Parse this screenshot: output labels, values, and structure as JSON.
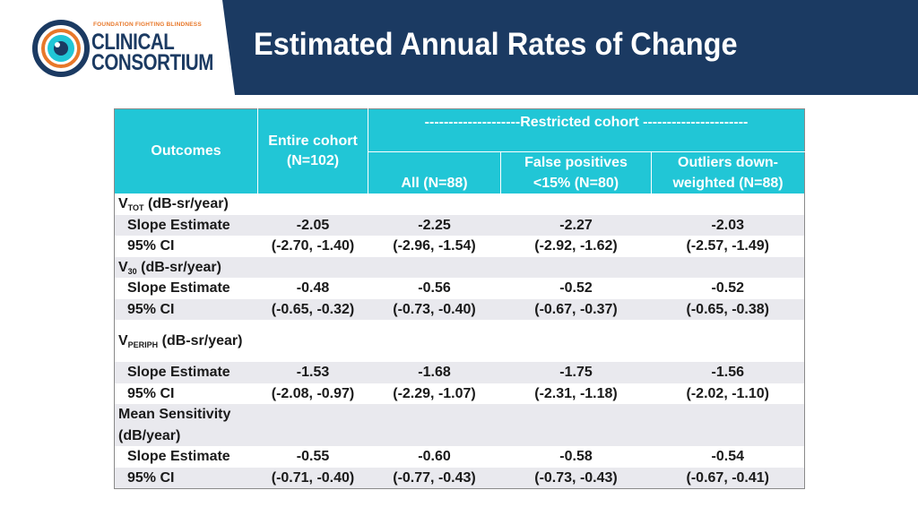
{
  "slide": {
    "title": "Estimated Annual Rates of Change"
  },
  "logo": {
    "tagline": "FOUNDATION FIGHTING BLINDNESS",
    "line1": "CLINICAL",
    "line2": "CONSORTIUM"
  },
  "colors": {
    "header_band": "#1b3a62",
    "table_header": "#21c6d6",
    "shade_row": "#e9e9ee",
    "logo_orange": "#e8782a"
  },
  "table": {
    "restricted_label": "--------------------Restricted cohort ----------------------",
    "headers": {
      "outcomes": "Outcomes",
      "entire_line1": "Entire cohort",
      "entire_line2": "(N=102)",
      "all": "All (N=88)",
      "fp_line1": "False positives",
      "fp_line2": "<15% (N=80)",
      "out_line1": "Outliers down-",
      "out_line2": "weighted (N=88)"
    },
    "groups": {
      "vtot": {
        "main": "V",
        "sub": "TOT",
        "unit": " (dB-sr/year)"
      },
      "v30": {
        "main": "V",
        "sub": "30",
        "unit": " (dB-sr/year)"
      },
      "vperiph": {
        "main": "V",
        "sub": "PERIPH",
        "unit": " (dB-sr/year)"
      },
      "mean": {
        "label": "Mean Sensitivity (dB/year)"
      }
    },
    "row_labels": {
      "slope": "Slope Estimate",
      "ci": "95% CI"
    },
    "rows": {
      "vtot_slope": [
        "-2.05",
        "-2.25",
        "-2.27",
        "-2.03"
      ],
      "vtot_ci": [
        "(-2.70, -1.40)",
        "(-2.96, -1.54)",
        "(-2.92, -1.62)",
        "(-2.57, -1.49)"
      ],
      "v30_slope": [
        "-0.48",
        "-0.56",
        "-0.52",
        "-0.52"
      ],
      "v30_ci": [
        "(-0.65, -0.32)",
        "(-0.73, -0.40)",
        "(-0.67, -0.37)",
        "(-0.65, -0.38)"
      ],
      "vperiph_slope": [
        "-1.53",
        "-1.68",
        "-1.75",
        "-1.56"
      ],
      "vperiph_ci": [
        "(-2.08, -0.97)",
        "(-2.29, -1.07)",
        "(-2.31, -1.18)",
        "(-2.02, -1.10)"
      ],
      "mean_slope": [
        "-0.55",
        "-0.60",
        "-0.58",
        "-0.54"
      ],
      "mean_ci": [
        "(-0.71, -0.40)",
        "(-0.77, -0.43)",
        "(-0.73, -0.43)",
        "(-0.67, -0.41)"
      ]
    }
  }
}
